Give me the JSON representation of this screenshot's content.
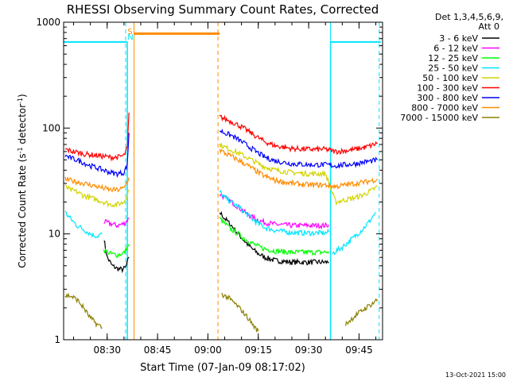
{
  "chart_data": {
    "type": "line",
    "title": "RHESSI Observing Summary Count Rates, Corrected",
    "xlabel": "Start Time (07-Jan-09 08:17:02)",
    "ylabel_main": "Corrected Count Rate (s",
    "ylabel_sup1": "-1",
    "ylabel_mid": " detector",
    "ylabel_sup2": "-1",
    "ylabel_end": ")",
    "yscale": "log",
    "ylim": [
      1,
      1000
    ],
    "xlim": [
      "08:17:02",
      "09:52:00"
    ],
    "xticks": [
      "08:30",
      "08:45",
      "09:00",
      "09:15",
      "09:30",
      "09:45"
    ],
    "yticks": [
      "1",
      "10",
      "100",
      "1000"
    ],
    "legend_title_1": "Det 1,3,4,5,6,9,",
    "legend_title_2": "Att 0",
    "legend_position": "top-right",
    "footer_date": "13-Oct-2021 15:00",
    "markers": [
      {
        "label": "S",
        "time": "08:37:00",
        "color": "#ff8c00"
      },
      {
        "label": "N",
        "time": "08:37:00",
        "color": "#00e5ff"
      }
    ],
    "series": [
      {
        "name": "3 - 6 keV",
        "color": "#000000",
        "segments": [
          [
            [
              "08:29:00",
              9
            ],
            [
              "08:30:00",
              6
            ],
            [
              "08:31:30",
              5
            ],
            [
              "08:33:00",
              4.7
            ],
            [
              "08:34:30",
              4.6
            ],
            [
              "08:35:30",
              4.8
            ],
            [
              "08:36:30",
              6
            ]
          ],
          [
            [
              "09:03:30",
              16
            ],
            [
              "09:05:00",
              14
            ],
            [
              "09:07:00",
              12
            ],
            [
              "09:09:00",
              10
            ],
            [
              "09:11:00",
              8.5
            ],
            [
              "09:13:00",
              7.3
            ],
            [
              "09:15:00",
              6.5
            ],
            [
              "09:17:00",
              6
            ],
            [
              "09:20:00",
              5.6
            ],
            [
              "09:25:00",
              5.4
            ],
            [
              "09:30:00",
              5.4
            ],
            [
              "09:35:00",
              5.4
            ],
            [
              "09:36:00",
              5.4
            ]
          ]
        ]
      },
      {
        "name": "6 - 12 keV",
        "color": "#ff00ff",
        "segments": [
          [
            [
              "08:29:00",
              13
            ],
            [
              "08:31:00",
              12.5
            ],
            [
              "08:33:00",
              12
            ],
            [
              "08:35:00",
              12.5
            ],
            [
              "08:36:30",
              14
            ]
          ],
          [
            [
              "09:03:30",
              24
            ],
            [
              "09:05:00",
              22
            ],
            [
              "09:07:00",
              20
            ],
            [
              "09:09:00",
              18
            ],
            [
              "09:11:00",
              16
            ],
            [
              "09:13:00",
              14.5
            ],
            [
              "09:15:00",
              13.5
            ],
            [
              "09:17:00",
              12.8
            ],
            [
              "09:20:00",
              12.3
            ],
            [
              "09:25:00",
              12
            ],
            [
              "09:30:00",
              12
            ],
            [
              "09:35:00",
              12
            ],
            [
              "09:36:00",
              12.2
            ]
          ]
        ]
      },
      {
        "name": "12 - 25 keV",
        "color": "#00ff00",
        "segments": [
          [
            [
              "08:29:00",
              7
            ],
            [
              "08:31:00",
              6.5
            ],
            [
              "08:33:00",
              6.3
            ],
            [
              "08:35:00",
              6.6
            ],
            [
              "08:36:30",
              8
            ]
          ],
          [
            [
              "09:03:30",
              14
            ],
            [
              "09:05:00",
              12.5
            ],
            [
              "09:07:00",
              11
            ],
            [
              "09:09:00",
              10
            ],
            [
              "09:11:00",
              9
            ],
            [
              "09:13:00",
              8.2
            ],
            [
              "09:15:00",
              7.6
            ],
            [
              "09:17:00",
              7.2
            ],
            [
              "09:20:00",
              6.9
            ],
            [
              "09:25:00",
              6.7
            ],
            [
              "09:30:00",
              6.7
            ],
            [
              "09:35:00",
              6.7
            ],
            [
              "09:36:00",
              6.8
            ]
          ]
        ]
      },
      {
        "name": "25 - 50 keV",
        "color": "#00e5ff",
        "segments": [
          [
            [
              "08:17:30",
              16
            ],
            [
              "08:19:00",
              14
            ],
            [
              "08:21:00",
              12
            ],
            [
              "08:23:00",
              11
            ],
            [
              "08:25:00",
              10
            ],
            [
              "08:27:00",
              9.5
            ],
            [
              "08:28:30",
              10
            ]
          ],
          [
            [
              "09:03:30",
              25
            ],
            [
              "09:05:00",
              22
            ],
            [
              "09:07:00",
              20
            ],
            [
              "09:09:00",
              18
            ],
            [
              "09:11:00",
              16
            ],
            [
              "09:13:00",
              14
            ],
            [
              "09:15:00",
              12.5
            ],
            [
              "09:17:00",
              11.5
            ],
            [
              "09:20:00",
              10.8
            ],
            [
              "09:25:00",
              10.3
            ],
            [
              "09:30:00",
              10.2
            ],
            [
              "09:35:00",
              10.2
            ],
            [
              "09:36:00",
              10.4
            ]
          ],
          [
            [
              "09:37:00",
              6.5
            ],
            [
              "09:40:00",
              7.5
            ],
            [
              "09:43:00",
              9
            ],
            [
              "09:46:00",
              11
            ],
            [
              "09:48:00",
              13
            ],
            [
              "09:50:00",
              16
            ]
          ]
        ]
      },
      {
        "name": "50 - 100 keV",
        "color": "#d4d400",
        "segments": [
          [
            [
              "08:17:30",
              28
            ],
            [
              "08:19:00",
              26
            ],
            [
              "08:21:00",
              25
            ],
            [
              "08:23:00",
              23
            ],
            [
              "08:25:00",
              22
            ],
            [
              "08:27:00",
              21
            ],
            [
              "08:29:00",
              20
            ],
            [
              "08:31:00",
              19
            ],
            [
              "08:33:00",
              19
            ],
            [
              "08:35:00",
              20
            ],
            [
              "08:36:30",
              26
            ]
          ],
          [
            [
              "09:03:30",
              70
            ],
            [
              "09:05:00",
              66
            ],
            [
              "09:07:00",
              62
            ],
            [
              "09:09:00",
              58
            ],
            [
              "09:11:00",
              54
            ],
            [
              "09:13:00",
              50
            ],
            [
              "09:15:00",
              46
            ],
            [
              "09:17:00",
              43
            ],
            [
              "09:20:00",
              40
            ],
            [
              "09:25:00",
              38
            ],
            [
              "09:30:00",
              37
            ],
            [
              "09:35:00",
              37
            ],
            [
              "09:38:00",
              20
            ],
            [
              "09:41:00",
              21
            ],
            [
              "09:44:00",
              22
            ],
            [
              "09:47:00",
              24
            ],
            [
              "09:49:00",
              26
            ],
            [
              "09:50:30",
              28
            ]
          ]
        ]
      },
      {
        "name": "100 - 300 keV",
        "color": "#ff0000",
        "segments": [
          [
            [
              "08:17:30",
              63
            ],
            [
              "08:19:00",
              61
            ],
            [
              "08:21:00",
              59
            ],
            [
              "08:23:00",
              57
            ],
            [
              "08:25:00",
              56
            ],
            [
              "08:27:00",
              55
            ],
            [
              "08:29:00",
              54
            ],
            [
              "08:31:00",
              53
            ],
            [
              "08:33:00",
              53
            ],
            [
              "08:35:00",
              55
            ],
            [
              "08:36:00",
              65
            ],
            [
              "08:36:30",
              140
            ]
          ],
          [
            [
              "09:03:30",
              128
            ],
            [
              "09:05:00",
              122
            ],
            [
              "09:07:00",
              115
            ],
            [
              "09:09:00",
              107
            ],
            [
              "09:11:00",
              98
            ],
            [
              "09:13:00",
              89
            ],
            [
              "09:15:00",
              81
            ],
            [
              "09:17:00",
              74
            ],
            [
              "09:20:00",
              68
            ],
            [
              "09:25:00",
              64
            ],
            [
              "09:30:00",
              63
            ],
            [
              "09:35:00",
              63
            ],
            [
              "09:38:00",
              60
            ],
            [
              "09:41:00",
              61
            ],
            [
              "09:44:00",
              63
            ],
            [
              "09:47:00",
              66
            ],
            [
              "09:49:00",
              69
            ],
            [
              "09:50:30",
              72
            ]
          ]
        ]
      },
      {
        "name": "300 - 800 keV",
        "color": "#0000ff",
        "segments": [
          [
            [
              "08:17:30",
              55
            ],
            [
              "08:19:00",
              52
            ],
            [
              "08:21:00",
              50
            ],
            [
              "08:23:00",
              47
            ],
            [
              "08:25:00",
              44
            ],
            [
              "08:27:00",
              42
            ],
            [
              "08:29:00",
              40
            ],
            [
              "08:31:00",
              38
            ],
            [
              "08:33:00",
              37
            ],
            [
              "08:35:00",
              38
            ],
            [
              "08:36:00",
              45
            ],
            [
              "08:36:30",
              90
            ]
          ],
          [
            [
              "09:03:30",
              95
            ],
            [
              "09:05:00",
              90
            ],
            [
              "09:07:00",
              85
            ],
            [
              "09:09:00",
              78
            ],
            [
              "09:11:00",
              71
            ],
            [
              "09:13:00",
              64
            ],
            [
              "09:15:00",
              58
            ],
            [
              "09:17:00",
              53
            ],
            [
              "09:20:00",
              49
            ],
            [
              "09:25:00",
              46
            ],
            [
              "09:30:00",
              45
            ],
            [
              "09:35:00",
              45
            ],
            [
              "09:38:00",
              44
            ],
            [
              "09:41:00",
              45
            ],
            [
              "09:44:00",
              46
            ],
            [
              "09:47:00",
              48
            ],
            [
              "09:49:00",
              49
            ],
            [
              "09:50:30",
              50
            ]
          ]
        ]
      },
      {
        "name": "800 - 7000 keV",
        "color": "#ff8c00",
        "segments": [
          [
            [
              "08:17:30",
              33
            ],
            [
              "08:19:00",
              32
            ],
            [
              "08:21:00",
              31
            ],
            [
              "08:23:00",
              30
            ],
            [
              "08:25:00",
              29
            ],
            [
              "08:27:00",
              28
            ],
            [
              "08:29:00",
              27
            ],
            [
              "08:31:00",
              26
            ],
            [
              "08:33:00",
              26
            ],
            [
              "08:35:00",
              27
            ],
            [
              "08:36:30",
              34
            ]
          ],
          [
            [
              "08:38:00",
              780
            ],
            [
              "09:03:30",
              780
            ]
          ],
          [
            [
              "09:03:30",
              62
            ],
            [
              "09:05:00",
              58
            ],
            [
              "09:07:00",
              54
            ],
            [
              "09:09:00",
              50
            ],
            [
              "09:11:00",
              46
            ],
            [
              "09:13:00",
              42
            ],
            [
              "09:15:00",
              38
            ],
            [
              "09:17:00",
              35
            ],
            [
              "09:20:00",
              32
            ],
            [
              "09:25:00",
              30
            ],
            [
              "09:30:00",
              29
            ],
            [
              "09:35:00",
              29
            ],
            [
              "09:38:00",
              28
            ],
            [
              "09:41:00",
              29
            ],
            [
              "09:44:00",
              30
            ],
            [
              "09:47:00",
              31
            ],
            [
              "09:49:00",
              32
            ],
            [
              "09:50:30",
              33
            ]
          ]
        ]
      },
      {
        "name": "7000 - 15000 keV",
        "color": "#8b8000",
        "segments": [
          [
            [
              "08:17:30",
              2.6
            ],
            [
              "08:19:00",
              2.6
            ],
            [
              "08:21:00",
              2.4
            ],
            [
              "08:23:00",
              2.0
            ],
            [
              "08:25:00",
              1.6
            ],
            [
              "08:27:00",
              1.4
            ],
            [
              "08:28:30",
              1.3
            ]
          ],
          [
            [
              "09:04:00",
              2.7
            ],
            [
              "09:06:00",
              2.5
            ],
            [
              "09:08:00",
              2.2
            ],
            [
              "09:10:00",
              1.9
            ],
            [
              "09:12:00",
              1.6
            ],
            [
              "09:14:00",
              1.3
            ],
            [
              "09:15:00",
              1.2
            ]
          ],
          [
            [
              "09:41:00",
              1.4
            ],
            [
              "09:44:00",
              1.7
            ],
            [
              "09:47:00",
              2.0
            ],
            [
              "09:49:00",
              2.2
            ],
            [
              "09:50:30",
              2.4
            ]
          ]
        ]
      }
    ],
    "attenuator_state": {
      "color": "#00e5ff",
      "segments": [
        [
          [
            "08:17:02",
            650
          ],
          [
            "08:36:00",
            650
          ]
        ],
        [
          [
            "09:36:30",
            650
          ],
          [
            "09:51:30",
            650
          ]
        ]
      ],
      "edges": [
        "08:36:00",
        "09:36:30"
      ]
    },
    "vertical_lines": [
      {
        "time": "08:35:30",
        "color": "#00e5ff",
        "style": "dashed"
      },
      {
        "time": "08:38:00",
        "color": "#ff8c00",
        "style": "solid"
      },
      {
        "time": "09:03:00",
        "color": "#ff8c00",
        "style": "dashed"
      },
      {
        "time": "09:36:30",
        "color": "#00e5ff",
        "style": "solid"
      },
      {
        "time": "09:51:00",
        "color": "#00e5ff",
        "style": "dashed"
      }
    ]
  }
}
